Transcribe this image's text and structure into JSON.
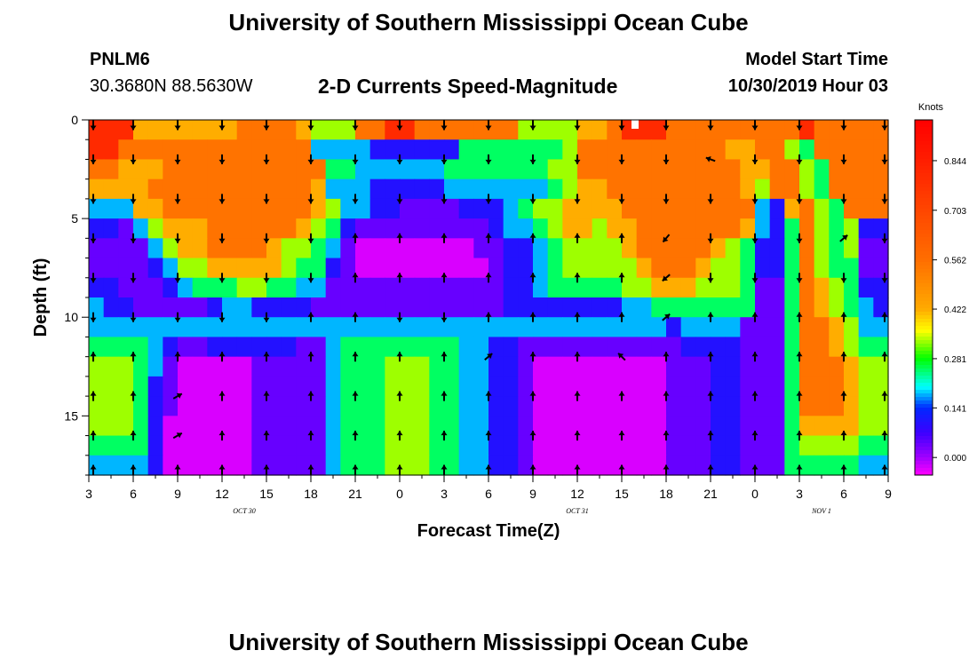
{
  "header": {
    "title": "University of Southern Mississippi Ocean Cube",
    "station": "PNLM6",
    "coords": "30.3680N 88.5630W",
    "subtitle": "2-D Currents Speed-Magnitude",
    "model_start_label": "Model Start Time",
    "model_start_value": "10/30/2019 Hour 03"
  },
  "footer": {
    "title": "University of Southern Mississippi Ocean Cube"
  },
  "chart_data": {
    "type": "heatmap",
    "title": "2-D Currents Speed-Magnitude",
    "xlabel": "Forecast Time(Z)",
    "ylabel": "Depth (ft)",
    "x_tick_labels": [
      "3",
      "6",
      "9",
      "12",
      "15",
      "18",
      "21",
      "0",
      "3",
      "6",
      "9",
      "12",
      "15",
      "18",
      "21",
      "0",
      "3",
      "6",
      "9"
    ],
    "date_labels": [
      {
        "text": "OCT 30",
        "at_tick": 3.5
      },
      {
        "text": "OCT 31",
        "at_tick": 11
      },
      {
        "text": "NOV 1",
        "at_tick": 16.5
      }
    ],
    "y_ticks": [
      0,
      5,
      10,
      15
    ],
    "ylim": [
      18,
      0
    ],
    "colorbar": {
      "unit": "Knots",
      "min": -0.05,
      "max": 0.96,
      "ticks": [
        "0.000",
        "0.141",
        "0.281",
        "0.422",
        "0.562",
        "0.703",
        "0.844"
      ],
      "tick_values": [
        0.0,
        0.141,
        0.281,
        0.422,
        0.562,
        0.703,
        0.844
      ]
    },
    "speed_grid_rows_top_to_bottom": [
      "AAACCCCCCCBBBBCDDDBBAABBBBBBBDDDDCCBAAABBBBBBBBBABBBBB",
      "AABBBBBBBBBBBBBFFFFGGGGGGEEEEEEEDBBBBBBBBBBCCBBDEBBBBB",
      "BBCCCBBBBBBBBBBBEEFFFFFFEEEEEEEDDBBBBBBBBBBBCCBBDEBBBB",
      "CCCCBBBBBBBBBBBCFFFGGGGGFFFFFFFEDCCBBBBBBBBBCDBBDEBBBB",
      "FFFCCBBBBBBBBBBCDFFGGHHHHGGGFEDDCCCCBBBBBBBBBFGCBDEBBB",
      "GGHFDCCCBBBBBBCDEGHHHHHHHHHGFFEDCCDCCBBBBBBBCFGEBDEDGG",
      "HHHHFDCCBBBBCDDEFHIIIIIIIIHHGGFEDDDDCBBBBBCDEGGEBDEDHH",
      "HHHHGFDDCCCCCDEEGHIIIIIIIIIHGGFEDDDDDCBBBCDDEGGEBDEEHH",
      "GGHHHGFEEEDDEEFFHHHHHHHHHHHHGGFEEEEEDDCCCDDDEHHEBCDEGG",
      "FGGHHHHHGFFGGGGHHHHHHHHHHHHHGGGGGGGGFFEEEEEEEHHEBCDEFG",
      "FFFFFFFFFFFFFFFFFFFFFFFFFFFFFFFFFFFFFFFGFFFFHHHEBBCDFF",
      "EEEEFGHHGGGGGGHHFEEEEEEEEFFGGHHHHHHHHHHHGGGGHHHEBBCDEE",
      "DDDEFHIIIIIHHHHHFEEEDDDEEFFGGHIIIIIIIIIHHHGGHHHEBBBCDD",
      "DDDEGHIIIIIHHHHHFEEEDDDEEFFGGHIIIIIIIIIHHHGGHHHEBBBCDD",
      "DDDEGHIIIIIHHHHHFEEEDDDEEFFGGHIIIIIIIIIHHHGGHHHEBBBCDD",
      "DDDEGIIIIIIHHHHHFEEEDDDEEFFGGHIIIIIIIIIHHHGGHHHECCCCDD",
      "EEEEGIIIIIIHHHHHFEEEDDDEEFFGGHIIIIIIIIIHHHGGHHHEDDDDEE",
      "FFFFGIIIIIIHHHHHFEEEDDDEEFFGGHIIIIIIIIIHHHGGHHHEEEEEFF"
    ],
    "speed_value_key": {
      "A": 0.8,
      "B": 0.55,
      "C": 0.42,
      "D": 0.33,
      "E": 0.25,
      "F": 0.18,
      "G": 0.1,
      "H": 0.04,
      "I": -0.03
    },
    "arrow_directions": "Mostly southward (down) near the surface and at 2-6 ft depth for 3-18Z Oct 30; mostly northward (up) below ~10 ft; mixed NE/SW arrows near 18Z Oct 31"
  },
  "colors": {
    "background": "#ffffff",
    "text": "#000000"
  }
}
